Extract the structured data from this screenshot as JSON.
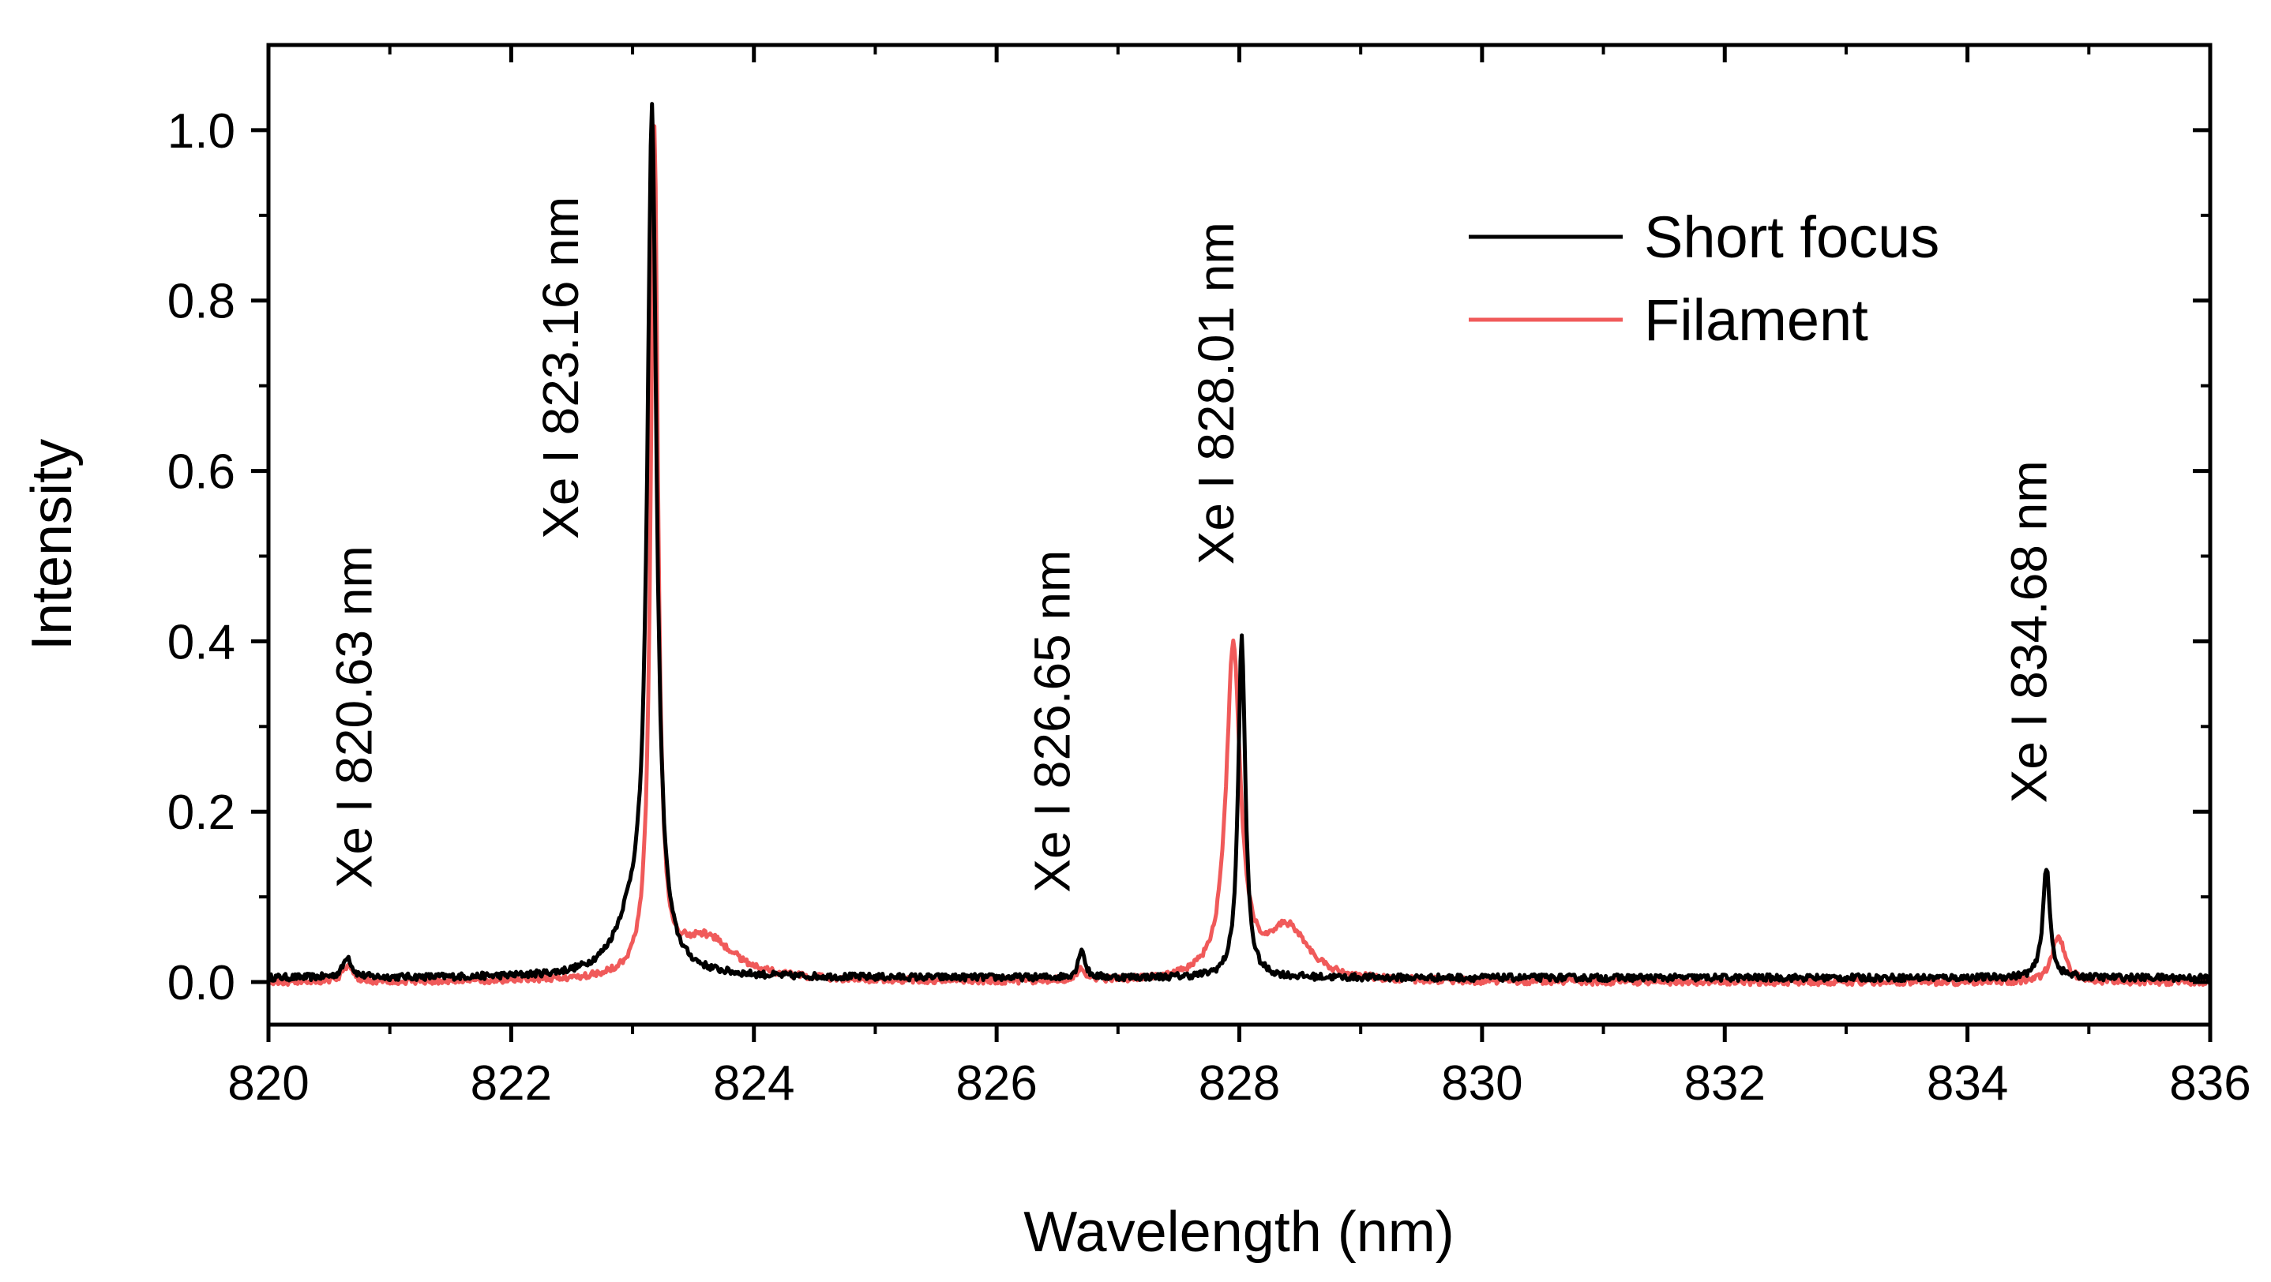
{
  "chart_data": {
    "type": "line",
    "title": "",
    "xlabel": "Wavelength (nm)",
    "ylabel": "Intensity",
    "xlim": [
      820,
      836
    ],
    "ylim": [
      -0.05,
      1.1
    ],
    "grid": false,
    "legend_position": "top-right",
    "x_ticks": [
      820,
      822,
      824,
      826,
      828,
      830,
      832,
      834,
      836
    ],
    "x_tick_labels": [
      "820",
      "822",
      "824",
      "826",
      "828",
      "830",
      "832",
      "834",
      "836"
    ],
    "y_ticks": [
      0.0,
      0.2,
      0.4,
      0.6,
      0.8,
      1.0
    ],
    "y_tick_labels": [
      "0.0",
      "0.2",
      "0.4",
      "0.6",
      "0.8",
      "1.0"
    ],
    "series": [
      {
        "name": "Short focus",
        "color": "#000000",
        "baseline": 0.005,
        "peaks": [
          {
            "center": 820.65,
            "amp": 0.025,
            "width": 0.08
          },
          {
            "center": 823.16,
            "amp": 0.99,
            "width": 0.09
          },
          {
            "center": 823.0,
            "amp": 0.06,
            "width": 0.35
          },
          {
            "center": 826.7,
            "amp": 0.035,
            "width": 0.06
          },
          {
            "center": 828.02,
            "amp": 0.4,
            "width": 0.07
          },
          {
            "center": 834.65,
            "amp": 0.13,
            "width": 0.07
          }
        ]
      },
      {
        "name": "Filament",
        "color": "#f05a5a",
        "baseline": 0.0,
        "peaks": [
          {
            "center": 820.65,
            "amp": 0.018,
            "width": 0.1
          },
          {
            "center": 823.18,
            "amp": 0.99,
            "width": 0.07
          },
          {
            "center": 823.6,
            "amp": 0.05,
            "width": 0.6
          },
          {
            "center": 826.7,
            "amp": 0.012,
            "width": 0.1
          },
          {
            "center": 827.95,
            "amp": 0.39,
            "width": 0.14
          },
          {
            "center": 828.4,
            "amp": 0.06,
            "width": 0.4
          },
          {
            "center": 834.75,
            "amp": 0.055,
            "width": 0.12
          }
        ]
      }
    ],
    "annotations": [
      {
        "text": "Xe I 820.63 nm",
        "x": 820.85,
        "y": 0.11,
        "rotation": -90
      },
      {
        "text": "Xe I 823.16 nm",
        "x": 822.55,
        "y": 0.52,
        "rotation": -90
      },
      {
        "text": "Xe I 826.65 nm",
        "x": 826.6,
        "y": 0.105,
        "rotation": -90
      },
      {
        "text": "Xe I 828.01 nm",
        "x": 827.95,
        "y": 0.49,
        "rotation": -90
      },
      {
        "text": "Xe I 834.68 nm",
        "x": 834.65,
        "y": 0.21,
        "rotation": -90
      }
    ]
  }
}
